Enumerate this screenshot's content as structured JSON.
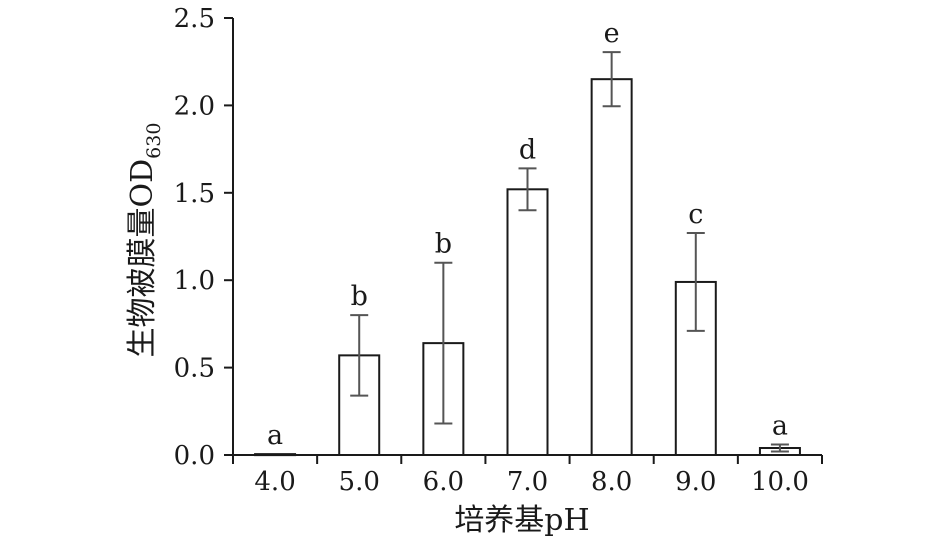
{
  "chart_data": {
    "type": "bar",
    "categories": [
      "4.0",
      "5.0",
      "6.0",
      "7.0",
      "8.0",
      "9.0",
      "10.0"
    ],
    "values": [
      0.005,
      0.57,
      0.64,
      1.52,
      2.15,
      0.99,
      0.04
    ],
    "errors": [
      0.0,
      0.23,
      0.46,
      0.12,
      0.155,
      0.28,
      0.02
    ],
    "significance": [
      "a",
      "b",
      "b",
      "d",
      "e",
      "c",
      "a"
    ],
    "xlabel": "培养基pH",
    "ylabel_main": "生物被膜量OD",
    "ylabel_sub": "630",
    "ylim": [
      0,
      2.5
    ],
    "yticks": [
      "0.0",
      "0.5",
      "1.0",
      "1.5",
      "2.0",
      "2.5"
    ],
    "grid": false,
    "legend": false
  }
}
